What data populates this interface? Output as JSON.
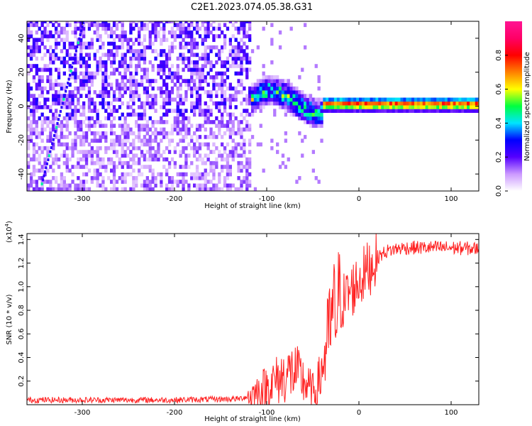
{
  "figure_title": "C2E1.2023.074.05.38.G31",
  "chart_data": [
    {
      "type": "heatmap",
      "xlabel": "Height of straight line (km)",
      "ylabel": "Frequency (Hz)",
      "xlim": [
        -360,
        130
      ],
      "ylim": [
        -50,
        50
      ],
      "xticks": [
        -300,
        -200,
        -100,
        0,
        100
      ],
      "yticks": [
        -40,
        -20,
        0,
        20,
        40
      ],
      "grid": false,
      "colorbar": {
        "label": "Normalized spectral amplitude",
        "range": [
          0.0,
          1.0
        ],
        "ticks": [
          0.0,
          0.2,
          0.4,
          0.6,
          0.8
        ],
        "colors": [
          "#ffffff",
          "#cc99ff",
          "#5500ff",
          "#0000ff",
          "#00e5ff",
          "#00ff40",
          "#ffff00",
          "#ff8000",
          "#ff0000",
          "#ff0066",
          "#ff1493"
        ]
      },
      "features": [
        {
          "label": "diffuse noise region",
          "x_range": [
            -360,
            -120
          ],
          "freq_range": [
            -50,
            50
          ],
          "amplitude": 0.15
        },
        {
          "label": "oblique line",
          "x_range": [
            -345,
            -300
          ],
          "freq_range": [
            -45,
            50
          ],
          "amplitude": 0.25
        },
        {
          "label": "transition band",
          "x_range": [
            -120,
            -40
          ],
          "freq_range": [
            -12,
            12
          ],
          "amplitude": 0.45
        },
        {
          "label": "steady line",
          "x_range": [
            -40,
            130
          ],
          "freq_range": [
            -1,
            1
          ],
          "amplitude": 0.85
        }
      ]
    },
    {
      "type": "line",
      "xlabel": "Height of straight line (km)",
      "ylabel": "SNR (10 * v/v)",
      "y_multiplier": "(x10",
      "y_multiplier_exp": "4",
      "y_multiplier_close": ")",
      "xlim": [
        -360,
        130
      ],
      "ylim": [
        0,
        1.45
      ],
      "xticks": [
        -300,
        -200,
        -100,
        0,
        100
      ],
      "yticks": [
        0.2,
        0.4,
        0.6,
        0.8,
        1.0,
        1.2,
        1.4
      ],
      "grid": false,
      "series_color": "#ff2020",
      "x": [
        -360,
        -300,
        -200,
        -130,
        -115,
        -100,
        -90,
        -80,
        -70,
        -60,
        -50,
        -45,
        -40,
        -35,
        -30,
        -25,
        -20,
        -15,
        -10,
        -5,
        0,
        10,
        20,
        30,
        40,
        50,
        60,
        80,
        100,
        130
      ],
      "y": [
        0.04,
        0.04,
        0.04,
        0.05,
        0.08,
        0.15,
        0.2,
        0.25,
        0.28,
        0.2,
        0.1,
        0.15,
        0.3,
        0.5,
        0.7,
        0.8,
        0.85,
        0.9,
        0.95,
        1.0,
        1.05,
        1.15,
        1.25,
        1.3,
        1.32,
        1.33,
        1.33,
        1.33,
        1.33,
        1.32
      ]
    }
  ]
}
